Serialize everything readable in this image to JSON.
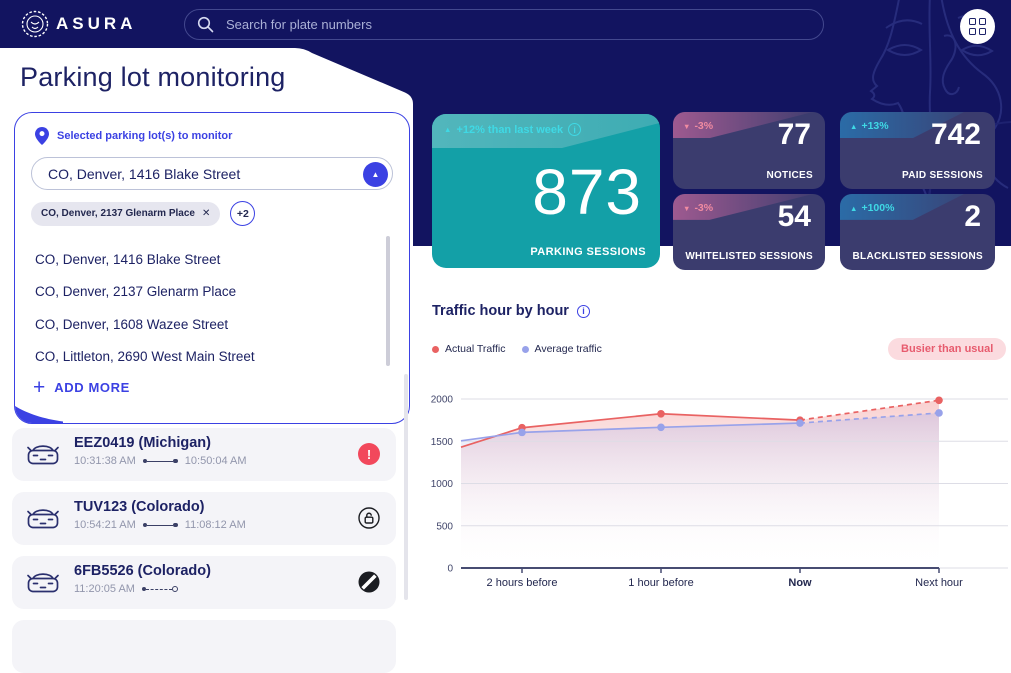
{
  "header": {
    "brand": "ASURA",
    "search": {
      "placeholder": "Search for plate numbers"
    }
  },
  "page_title": "Parking lot monitoring",
  "lot_selector": {
    "label": "Selected parking lot(s) to monitor",
    "selected_value": "CO, Denver, 1416 Blake Street",
    "chip_label": "CO, Denver, 2137 Glenarm Place",
    "chip_remove": "✕",
    "chip_more": "+2",
    "options": [
      "CO, Denver, 1416 Blake Street",
      "CO, Denver, 2137 Glenarm Place",
      "CO, Denver, 1608 Wazee Street",
      "CO, Littleton, 2690 West Main Street"
    ],
    "add_more_plus": "+",
    "add_more": "ADD MORE"
  },
  "vehicles": [
    {
      "plate": "EEZ0419 (Michigan)",
      "time_start": "10:31:38 AM",
      "time_end": "10:50:04 AM",
      "status": "alert"
    },
    {
      "plate": "TUV123 (Colorado)",
      "time_start": "10:54:21 AM",
      "time_end": "11:08:12 AM",
      "status": "unlocked"
    },
    {
      "plate": "6FB5526 (Colorado)",
      "time_start": "11:20:05 AM",
      "time_end": "",
      "status": "blocked"
    }
  ],
  "stats": {
    "primary": {
      "arrow": "▲",
      "trend_text": "+12% than last week",
      "value": "873",
      "label": "PARKING SESSIONS"
    },
    "cards": [
      {
        "arrow": "▼",
        "trend_text": "-3%",
        "value": "77",
        "label": "NOTICES"
      },
      {
        "arrow": "▲",
        "trend_text": "+13%",
        "value": "742",
        "label": "PAID SESSIONS"
      },
      {
        "arrow": "▼",
        "trend_text": "-3%",
        "value": "54",
        "label": "WHITELISTED SESSIONS"
      },
      {
        "arrow": "▲",
        "trend_text": "+100%",
        "value": "2",
        "label": "BLACKLISTED SESSIONS"
      }
    ]
  },
  "chart_section": {
    "title": "Traffic hour by hour",
    "badge": "Busier than usual"
  },
  "chart_data": {
    "type": "line",
    "title": "Traffic hour by hour",
    "x_categories": [
      "",
      "2 hours before",
      "1 hour before",
      "Now",
      "Next hour"
    ],
    "series": [
      {
        "name": "Actual Traffic",
        "color": "#e96262",
        "fill": "rgba(233,98,98,0.30)",
        "values": [
          1430,
          1660,
          1825,
          1750,
          1985
        ],
        "projected_from_index": 3
      },
      {
        "name": "Average traffic",
        "color": "#98a2ea",
        "fill": "rgba(152,162,234,0.28)",
        "values": [
          1505,
          1605,
          1665,
          1715,
          1835
        ],
        "projected_from_index": 3
      }
    ],
    "ylim": [
      0,
      2000
    ],
    "ytick_step": 500,
    "grid": true,
    "legend_position": "top-left",
    "bold_x_label": "Now",
    "note": "Dashed segments after Now are projections"
  },
  "colors": {
    "accent_blue": "#3b41e3",
    "navy_bg": "#121460",
    "teal_card": "#13a0a7",
    "stat_card_bg": "#3b3c6e",
    "positive_text": "#3fd9e5",
    "negative_text": "#f08ba1",
    "alert_red": "#f2485c",
    "busier_badge_bg": "#fbdbdf",
    "busier_badge_text": "#e75b6e"
  }
}
